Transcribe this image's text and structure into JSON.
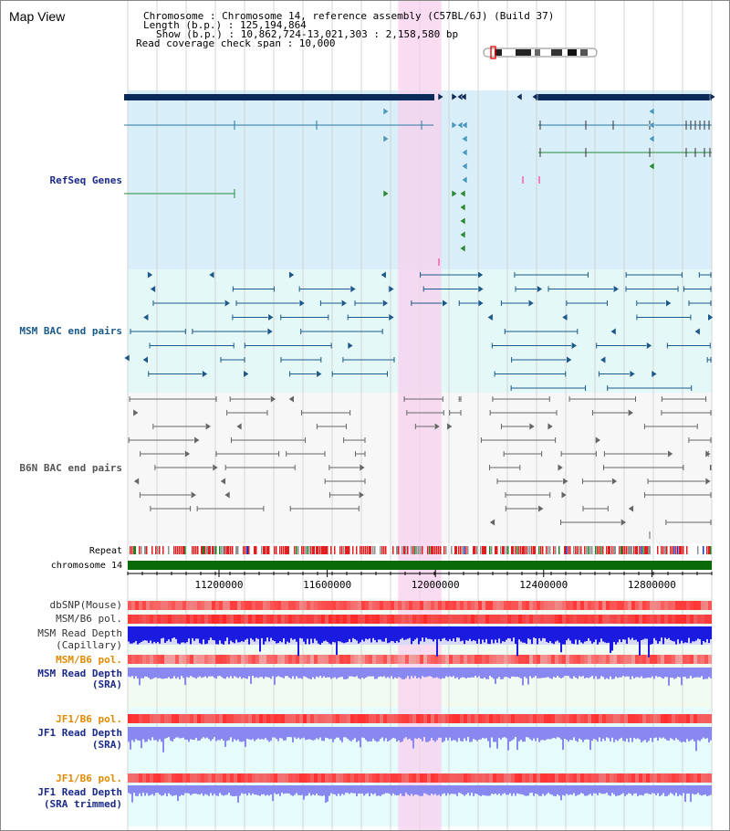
{
  "view": {
    "title": "Map View",
    "header": {
      "chromosome": "Chromosome     : Chromosome 14, reference assembly (C57BL/6J) (Build 37)",
      "length": "Length (b.p.) : 125,194,864",
      "show": "Show (b.p.) : 10,862,724-13,021,303 : 2,158,580 bp",
      "coverage": "Read coverage check span : 10,000"
    },
    "axis_ticks": [
      "11200000",
      "11600000",
      "12000000",
      "12400000",
      "12800000"
    ],
    "axis_ticks_bp": [
      11200000,
      11600000,
      12000000,
      12400000,
      12800000
    ],
    "range_bp": [
      10862724,
      13021303
    ],
    "highlight_bp": [
      11862000,
      12022000
    ]
  },
  "tracks": {
    "refseq": {
      "label": "RefSeq Genes",
      "color": "#1a2a8a"
    },
    "msm_bac": {
      "label": "MSM BAC end pairs",
      "color": "#1a5a8a"
    },
    "b6n_bac": {
      "label": "B6N BAC end pairs",
      "color": "#555555"
    },
    "repeat": {
      "label": "Repeat"
    },
    "chromosome": {
      "label": "chromosome 14"
    },
    "dbsnp": {
      "label": "dbSNP(Mouse)"
    },
    "msm_pol1": {
      "label": "MSM/B6 pol."
    },
    "msm_depth_cap": {
      "label1": "MSM Read Depth",
      "label2": "(Capillary)"
    },
    "msm_pol2": {
      "label": "MSM/B6 pol.",
      "color": "#e08a00"
    },
    "msm_depth_sra": {
      "label1": "MSM Read Depth",
      "label2": "(SRA)"
    },
    "jf1_pol1": {
      "label": "JF1/B6 pol.",
      "color": "#e08a00"
    },
    "jf1_depth": {
      "label1": "JF1 Read Depth",
      "label2": "(SRA)"
    },
    "jf1_pol2": {
      "label": "JF1/B6 pol.",
      "color": "#e08a00"
    },
    "jf1_depth_trim": {
      "label1": "JF1 Read Depth",
      "label2": "(SRA trimmed)"
    }
  },
  "colors": {
    "refseq_bg": "#d8eef8",
    "msm_bg": "#e4f8f8",
    "highlight": "#f8d0ee",
    "gene_dark": "#0a2a5a",
    "gene_teal": "#2a7aa0",
    "gene_green": "#2a8a3a",
    "bac_teal": "#1a5a8a",
    "bac_gray": "#666666",
    "depth_blue": "#1a1ae0",
    "depth_lblue": "#8888f0",
    "pol_red": "#f04040",
    "chrom_green": "#0a6a0a"
  }
}
